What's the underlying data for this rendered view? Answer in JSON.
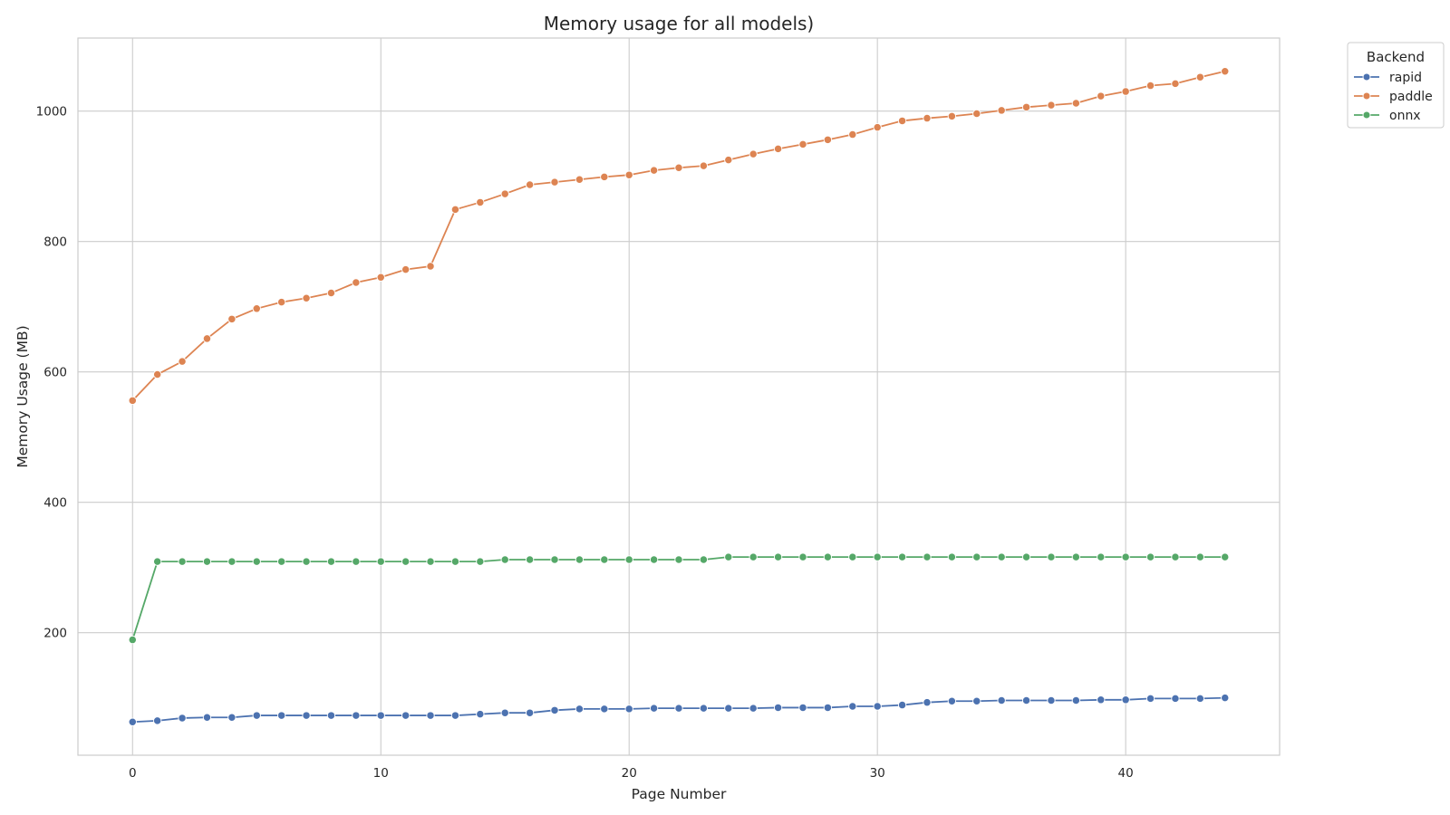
{
  "chart_data": {
    "type": "line",
    "title": "Memory usage for all models)",
    "xlabel": "Page Number",
    "ylabel": "Memory Usage (MB)",
    "xlim": [
      -2.2,
      46.2
    ],
    "ylim": [
      12,
      1112
    ],
    "xticks": [
      0,
      10,
      20,
      30,
      40
    ],
    "yticks": [
      200,
      400,
      600,
      800,
      1000
    ],
    "grid": true,
    "legend": {
      "title": "Backend",
      "placement": "outside-top-right"
    },
    "x": [
      0,
      1,
      2,
      3,
      4,
      5,
      6,
      7,
      8,
      9,
      10,
      11,
      12,
      13,
      14,
      15,
      16,
      17,
      18,
      19,
      20,
      21,
      22,
      23,
      24,
      25,
      26,
      27,
      28,
      29,
      30,
      31,
      32,
      33,
      34,
      35,
      36,
      37,
      38,
      39,
      40,
      41,
      42,
      43,
      44
    ],
    "series": [
      {
        "name": "rapid",
        "color": "#4c72b0",
        "values": [
          63,
          65,
          69,
          70,
          70,
          73,
          73,
          73,
          73,
          73,
          73,
          73,
          73,
          73,
          75,
          77,
          77,
          81,
          83,
          83,
          83,
          84,
          84,
          84,
          84,
          84,
          85,
          85,
          85,
          87,
          87,
          89,
          93,
          95,
          95,
          96,
          96,
          96,
          96,
          97,
          97,
          99,
          99,
          99,
          100
        ]
      },
      {
        "name": "paddle",
        "color": "#dd8452",
        "values": [
          556,
          596,
          616,
          651,
          681,
          697,
          707,
          713,
          721,
          737,
          745,
          757,
          762,
          849,
          860,
          873,
          887,
          891,
          895,
          899,
          902,
          909,
          913,
          916,
          925,
          934,
          942,
          949,
          956,
          964,
          975,
          985,
          989,
          992,
          996,
          1001,
          1006,
          1009,
          1012,
          1023,
          1030,
          1039,
          1042,
          1052,
          1061
        ]
      },
      {
        "name": "onnx",
        "color": "#55a868",
        "values": [
          189,
          309,
          309,
          309,
          309,
          309,
          309,
          309,
          309,
          309,
          309,
          309,
          309,
          309,
          309,
          312,
          312,
          312,
          312,
          312,
          312,
          312,
          312,
          312,
          316,
          316,
          316,
          316,
          316,
          316,
          316,
          316,
          316,
          316,
          316,
          316,
          316,
          316,
          316,
          316,
          316,
          316,
          316,
          316,
          316
        ]
      }
    ]
  }
}
